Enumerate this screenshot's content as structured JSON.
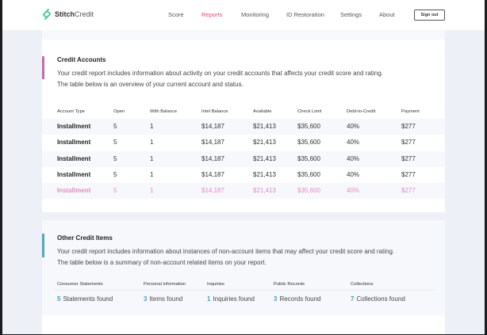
{
  "header": {
    "brand_bold": "Stitch",
    "brand_light": "Credit",
    "nav": [
      "Score",
      "Reports",
      "Monitoring",
      "ID Restoration",
      "Settings",
      "About"
    ],
    "active": "Reports",
    "sign_out": "Sign out"
  },
  "credit_accounts": {
    "title": "Credit Accounts",
    "description": "Your credit report includes information about activity on your credit accounts that affects your credit score and rating. The table below is an overview of your current account and status.",
    "columns": [
      "Account Type",
      "Open",
      "With Balance",
      "Intel Balance",
      "Available",
      "Check Limit",
      "Debt-to-Credit",
      "Payment"
    ],
    "rows": [
      [
        "Installment",
        "5",
        "1",
        "$14,187",
        "$21,413",
        "$35,600",
        "40%",
        "$277"
      ],
      [
        "Installment",
        "5",
        "1",
        "$14,187",
        "$21,413",
        "$35,600",
        "40%",
        "$277"
      ],
      [
        "Installment",
        "5",
        "1",
        "$14,187",
        "$21,413",
        "$35,600",
        "40%",
        "$277"
      ],
      [
        "Installment",
        "5",
        "1",
        "$14,187",
        "$21,413",
        "$35,600",
        "40%",
        "$277"
      ],
      [
        "Installment",
        "5",
        "1",
        "$14,187",
        "$21,413",
        "$35,600",
        "40%",
        "$277"
      ]
    ],
    "accent": "#c86aa8"
  },
  "other_items": {
    "title": "Other Credit Items",
    "description": "Your credit report includes information about instances of non-account items that may affect your credit score and rating. The table below is a summary of non-account related items on your report.",
    "accent": "#4aa8c8",
    "columns": [
      {
        "label": "Consumer Statements",
        "count": "5",
        "text": "Statements found"
      },
      {
        "label": "Personal information",
        "count": "3",
        "text": "Items found"
      },
      {
        "label": "Inquiries",
        "count": "1",
        "text": "Inquiries found"
      },
      {
        "label": "Public Records",
        "count": "3",
        "text": "Records found"
      },
      {
        "label": "Collections",
        "count": "7",
        "text": "Collections found"
      }
    ]
  }
}
